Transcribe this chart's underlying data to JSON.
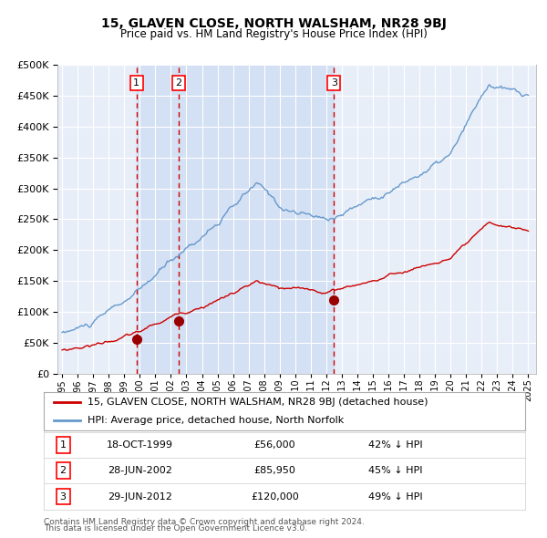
{
  "title": "15, GLAVEN CLOSE, NORTH WALSHAM, NR28 9BJ",
  "subtitle": "Price paid vs. HM Land Registry's House Price Index (HPI)",
  "legend_entry1": "15, GLAVEN CLOSE, NORTH WALSHAM, NR28 9BJ (detached house)",
  "legend_entry2": "HPI: Average price, detached house, North Norfolk",
  "transactions": [
    {
      "num": 1,
      "date": "18-OCT-1999",
      "price": 56000,
      "pct": "42%",
      "dir": "↓"
    },
    {
      "num": 2,
      "date": "28-JUN-2002",
      "price": 85950,
      "pct": "45%",
      "dir": "↓"
    },
    {
      "num": 3,
      "date": "29-JUN-2012",
      "price": 120000,
      "pct": "49%",
      "dir": "↓"
    }
  ],
  "transaction_dates_decimal": [
    1999.79,
    2002.49,
    2012.49
  ],
  "transaction_prices": [
    56000,
    85950,
    120000
  ],
  "footer1": "Contains HM Land Registry data © Crown copyright and database right 2024.",
  "footer2": "This data is licensed under the Open Government Licence v3.0.",
  "hpi_color": "#6699cc",
  "price_color": "#cc0000",
  "dot_color": "#990000",
  "background_plot": "#e8eef8",
  "background_fig": "#ffffff",
  "grid_color": "#ffffff",
  "dashed_color": "#cc0000",
  "ylim": [
    0,
    500000
  ],
  "yticks": [
    0,
    50000,
    100000,
    150000,
    200000,
    250000,
    300000,
    350000,
    400000,
    450000,
    500000
  ],
  "start_year": 1995,
  "end_year": 2025,
  "shaded_region": [
    1999.79,
    2012.49
  ]
}
